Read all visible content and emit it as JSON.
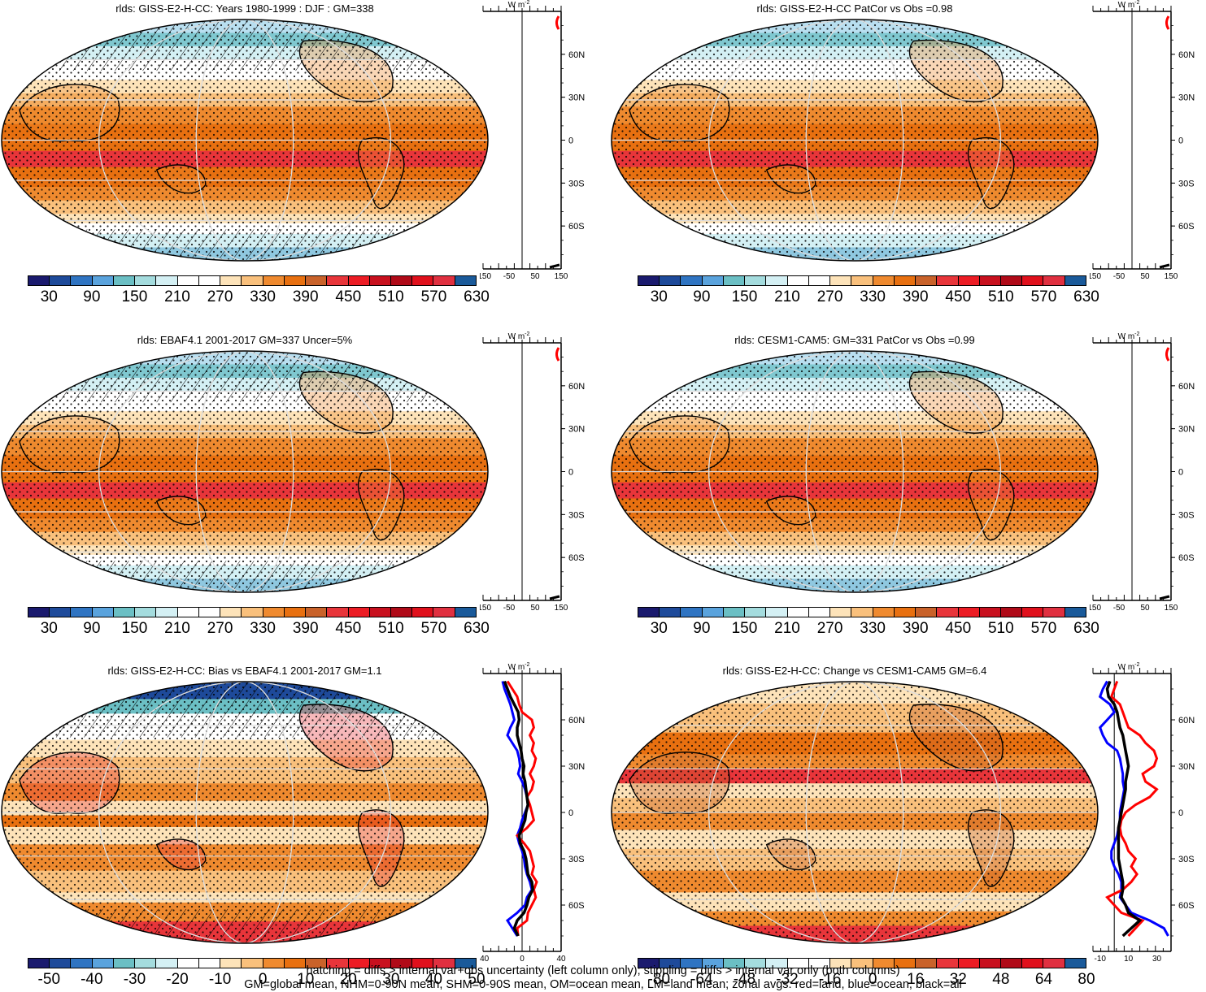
{
  "figure": {
    "footer_line1": "hatching = diffs > internal var+obs uncertainty (left column only); stippling = diffs > internal var only (both columns)",
    "footer_line2": "GM=global mean, NHM=0-90N mean, SHM=0-90S mean, OM=ocean mean, LM=land mean; zonal avgs: red=land, blue=ocean, black=all"
  },
  "panels": [
    {
      "title": "rlds: GISS-E2-H-CC: Years 1980-1999 : DJF : GM=338",
      "unit": "W m",
      "unit_sup": "-2"
    },
    {
      "title": "rlds: GISS-E2-H-CC PatCor vs Obs =0.98",
      "unit": "W m",
      "unit_sup": "-2"
    },
    {
      "title": "rlds: EBAF4.1 2001-2017 GM=337 Uncer=5%",
      "unit": "W m",
      "unit_sup": "-2"
    },
    {
      "title": "rlds: CESM1-CAM5: GM=331 PatCor vs Obs =0.99",
      "unit": "W m",
      "unit_sup": "-2"
    },
    {
      "title": "rlds: GISS-E2-H-CC: Bias vs EBAF4.1 2001-2017 GM=1.1",
      "unit": "W m",
      "unit_sup": "-2"
    },
    {
      "title": "rlds: GISS-E2-H-CC: Change vs CESM1-CAM5 GM=6.4",
      "unit": "W m",
      "unit_sup": "-2"
    }
  ],
  "colors": {
    "abs_scale": [
      "#1a1a6e",
      "#1e4a9a",
      "#2f74c2",
      "#5aa3dd",
      "#6bbfc4",
      "#a4dcde",
      "#d4f0f4",
      "#ffffff",
      "#ffffff",
      "#fde3b9",
      "#f9c07c",
      "#ef8a2f",
      "#e87010",
      "#c9622a",
      "#e8353a",
      "#ec1c24",
      "#c8101e",
      "#b00a18",
      "#e0101c",
      "#e03040",
      "#1a5a9a"
    ],
    "diff_scale": [
      "#1a1a6e",
      "#1e4a9a",
      "#2f74c2",
      "#5aa3dd",
      "#6bbfc4",
      "#a4dcde",
      "#d4f0f4",
      "#ffffff",
      "#ffffff",
      "#fde3b9",
      "#f9c07c",
      "#ef8a2f",
      "#e87010",
      "#c9622a",
      "#e8353a",
      "#ec1c24",
      "#c8101e",
      "#b00a18",
      "#e0101c",
      "#e03040",
      "#1a5a9a"
    ],
    "land": "#ff0000",
    "ocean": "#0000ff",
    "all": "#000000"
  },
  "chart_data": [
    {
      "type": "heatmap",
      "title": "rlds: GISS-E2-H-CC: Years 1980-1999 : DJF : GM=338",
      "colorbar_ticks": [
        "30",
        "90",
        "150",
        "210",
        "270",
        "330",
        "390",
        "450",
        "510",
        "570",
        "630"
      ],
      "zonal_xticks": [
        "-150",
        "-50",
        "50",
        "150"
      ],
      "zonal_xlim": [
        -150,
        150
      ],
      "lat_ticks": [
        "60N",
        "30N",
        "0",
        "30S",
        "60S"
      ],
      "zonal": {
        "lat": [
          90,
          75
        ],
        "land": [
          null,
          150
        ]
      }
    },
    {
      "type": "heatmap",
      "title": "rlds: GISS-E2-H-CC PatCor vs Obs =0.98",
      "colorbar_ticks": [
        "30",
        "90",
        "150",
        "210",
        "270",
        "330",
        "390",
        "450",
        "510",
        "570",
        "630"
      ],
      "zonal_xticks": [
        "-150",
        "-50",
        "50",
        "150"
      ],
      "zonal_xlim": [
        -150,
        150
      ],
      "lat_ticks": [
        "60N",
        "30N",
        "0",
        "30S",
        "60S"
      ]
    },
    {
      "type": "heatmap",
      "title": "rlds: EBAF4.1 2001-2017 GM=337 Uncer=5%",
      "colorbar_ticks": [
        "30",
        "90",
        "150",
        "210",
        "270",
        "330",
        "390",
        "450",
        "510",
        "570",
        "630"
      ],
      "zonal_xticks": [
        "-150",
        "-50",
        "50",
        "150"
      ],
      "zonal_xlim": [
        -150,
        150
      ],
      "lat_ticks": [
        "60N",
        "30N",
        "0",
        "30S",
        "60S"
      ]
    },
    {
      "type": "heatmap",
      "title": "rlds: CESM1-CAM5: GM=331 PatCor vs Obs =0.99",
      "colorbar_ticks": [
        "30",
        "90",
        "150",
        "210",
        "270",
        "330",
        "390",
        "450",
        "510",
        "570",
        "630"
      ],
      "zonal_xticks": [
        "-150",
        "-50",
        "50",
        "150"
      ],
      "zonal_xlim": [
        -150,
        150
      ],
      "lat_ticks": [
        "60N",
        "30N",
        "0",
        "30S",
        "60S"
      ]
    },
    {
      "type": "heatmap",
      "title": "rlds: GISS-E2-H-CC: Bias vs EBAF4.1 2001-2017 GM=1.1",
      "colorbar_ticks": [
        "-50",
        "-40",
        "-30",
        "-20",
        "-10",
        "0",
        "10",
        "20",
        "30",
        "40",
        "50"
      ],
      "zonal_xticks": [
        "-40",
        "0",
        "40"
      ],
      "zonal_xlim": [
        -40,
        40
      ],
      "lat_ticks": [
        "60N",
        "30N",
        "0",
        "30S",
        "60S"
      ],
      "zonal": {
        "lat": [
          85,
          80,
          75,
          70,
          65,
          60,
          55,
          50,
          45,
          40,
          35,
          30,
          25,
          20,
          15,
          10,
          5,
          0,
          -5,
          -10,
          -15,
          -20,
          -25,
          -30,
          -35,
          -40,
          -45,
          -50,
          -55,
          -60,
          -65,
          -70,
          -75,
          -80
        ],
        "land": [
          -15,
          -10,
          -5,
          -3,
          0,
          10,
          12,
          8,
          12,
          10,
          14,
          12,
          8,
          12,
          10,
          5,
          8,
          10,
          12,
          5,
          -5,
          2,
          8,
          10,
          12,
          10,
          15,
          12,
          14,
          10,
          6,
          5,
          -5,
          -4
        ],
        "ocean": [
          -20,
          -18,
          -15,
          -12,
          -10,
          -8,
          -12,
          -15,
          -10,
          -5,
          -3,
          -2,
          -4,
          0,
          3,
          5,
          6,
          3,
          0,
          -2,
          -5,
          -3,
          0,
          2,
          3,
          5,
          8,
          10,
          5,
          3,
          -5,
          -15,
          -10,
          -5
        ],
        "all": [
          -18,
          -15,
          -12,
          -8,
          -4,
          -3,
          -5,
          -5,
          -3,
          -1,
          0,
          2,
          1,
          3,
          4,
          5,
          6,
          4,
          3,
          0,
          -3,
          -2,
          2,
          4,
          5,
          6,
          10,
          11,
          7,
          5,
          2,
          -5,
          -8,
          -4
        ]
      }
    },
    {
      "type": "heatmap",
      "title": "rlds: GISS-E2-H-CC: Change vs CESM1-CAM5 GM=6.4",
      "colorbar_ticks": [
        "-80",
        "-64",
        "-48",
        "-32",
        "-16",
        "0",
        "16",
        "32",
        "48",
        "64",
        "80"
      ],
      "zonal_xticks": [
        "-10",
        "10",
        "30"
      ],
      "zonal_xlim": [
        -15,
        40
      ],
      "lat_ticks": [
        "60N",
        "30N",
        "0",
        "30S",
        "60S"
      ],
      "zonal": {
        "lat": [
          85,
          80,
          75,
          70,
          65,
          60,
          55,
          50,
          45,
          40,
          35,
          30,
          25,
          20,
          15,
          10,
          5,
          0,
          -5,
          -10,
          -15,
          -20,
          -25,
          -30,
          -35,
          -40,
          -45,
          -50,
          -55,
          -60,
          -65,
          -70,
          -75,
          -80
        ],
        "land": [
          2,
          0,
          -2,
          4,
          6,
          8,
          10,
          18,
          22,
          28,
          30,
          28,
          20,
          22,
          30,
          25,
          15,
          8,
          5,
          4,
          5,
          8,
          10,
          15,
          12,
          16,
          12,
          6,
          -5,
          0,
          5,
          20,
          15,
          10
        ],
        "ocean": [
          -5,
          -8,
          -10,
          -3,
          0,
          -5,
          -10,
          -8,
          -5,
          2,
          4,
          5,
          6,
          6,
          7,
          6,
          5,
          4,
          4,
          3,
          2,
          0,
          -2,
          -2,
          0,
          3,
          5,
          5,
          4,
          8,
          12,
          25,
          35,
          38
        ],
        "all": [
          -3,
          -5,
          -4,
          0,
          2,
          3,
          4,
          6,
          7,
          8,
          9,
          10,
          9,
          8,
          8,
          7,
          6,
          5,
          4,
          3,
          3,
          3,
          3,
          3,
          4,
          5,
          6,
          6,
          5,
          8,
          10,
          18,
          12,
          6
        ]
      }
    }
  ]
}
